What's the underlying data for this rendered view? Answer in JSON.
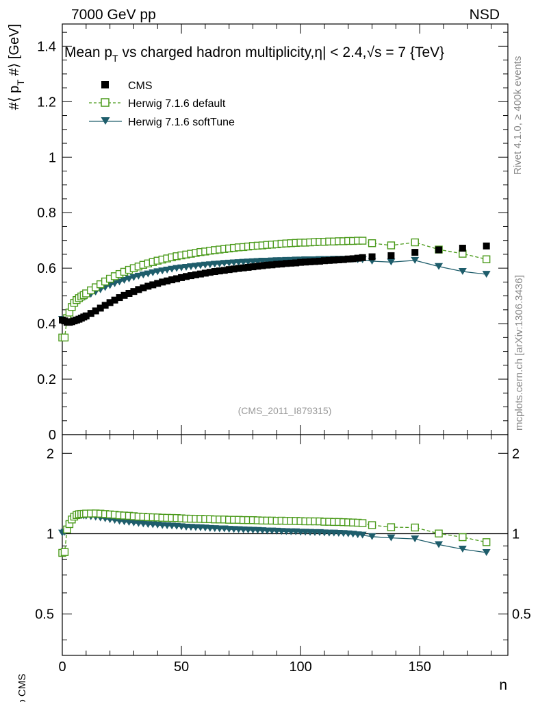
{
  "header": {
    "left": "7000 GeV pp",
    "right": "NSD"
  },
  "side_labels": {
    "rivet": "Rivet 4.1.0, ≥ 400k events",
    "mcplots": "mcplots.cern.ch [arXiv:1306.3436]"
  },
  "chart_data": {
    "type": "line",
    "title": "Mean p_T vs charged hadron multiplicity, |η| < 2.4, √s = 7 {TeV}",
    "title_parts": {
      "main": "Mean p",
      "sub": "T",
      "rest": " vs charged hadron multiplicity,",
      "eta": "η",
      "cut": "| < 2.4,",
      "sqrt": "√",
      "energy": "s = 7 {TeV}"
    },
    "ylabel": "#⟨ p_T #⟩ [GeV]",
    "ylabel_parts": {
      "pre": "#⟨ p",
      "sub": "T",
      "post": " #⟩ [GeV]"
    },
    "xlabel": "n",
    "ratio_ylabel": "Ratio to CMS",
    "watermark": "(CMS_2011_I879315)",
    "xlim": [
      0,
      187
    ],
    "ylim": [
      0,
      1.48
    ],
    "ratio_ylim": [
      0.35,
      2.35
    ],
    "ratio_log": true,
    "x_ticks": [
      "0",
      "50",
      "100",
      "150"
    ],
    "y_ticks": [
      "0",
      "0.2",
      "0.4",
      "0.6",
      "0.8",
      "1",
      "1.2",
      "1.4"
    ],
    "ratio_ticks": [
      "0.5",
      "1",
      "2"
    ],
    "legend": [
      "CMS",
      "Herwig 7.1.6 default",
      "Herwig 7.1.6 softTune"
    ],
    "x": [
      0,
      1,
      2,
      3,
      4,
      5,
      6,
      7,
      8,
      9,
      10,
      12,
      14,
      16,
      18,
      20,
      22,
      24,
      26,
      28,
      30,
      32,
      34,
      36,
      38,
      40,
      42,
      44,
      46,
      48,
      50,
      52,
      54,
      56,
      58,
      60,
      62,
      64,
      66,
      68,
      70,
      72,
      74,
      76,
      78,
      80,
      82,
      84,
      86,
      88,
      90,
      92,
      94,
      96,
      98,
      100,
      102,
      104,
      106,
      108,
      110,
      112,
      114,
      116,
      118,
      120,
      122,
      124,
      126,
      130,
      138,
      148,
      158,
      168,
      178
    ],
    "series": [
      {
        "name": "CMS",
        "color": "#000000",
        "marker": "filled-square",
        "values": [
          0.413,
          0.41,
          0.405,
          0.405,
          0.407,
          0.41,
          0.413,
          0.416,
          0.42,
          0.424,
          0.428,
          0.437,
          0.446,
          0.456,
          0.466,
          0.476,
          0.485,
          0.494,
          0.502,
          0.509,
          0.516,
          0.523,
          0.529,
          0.535,
          0.54,
          0.545,
          0.55,
          0.554,
          0.558,
          0.562,
          0.566,
          0.57,
          0.573,
          0.576,
          0.579,
          0.582,
          0.585,
          0.588,
          0.59,
          0.592,
          0.595,
          0.597,
          0.599,
          0.601,
          0.603,
          0.605,
          0.607,
          0.609,
          0.611,
          0.612,
          0.614,
          0.615,
          0.617,
          0.618,
          0.619,
          0.621,
          0.622,
          0.623,
          0.624,
          0.625,
          0.627,
          0.628,
          0.629,
          0.63,
          0.631,
          0.633,
          0.634,
          0.636,
          0.638,
          0.641,
          0.645,
          0.657,
          0.666,
          0.672,
          0.68
        ]
      },
      {
        "name": "Herwig 7.1.6 default",
        "color": "#4a9a1a",
        "marker": "open-square",
        "dash": true,
        "values": [
          0.35,
          0.35,
          0.42,
          0.44,
          0.46,
          0.475,
          0.485,
          0.492,
          0.498,
          0.503,
          0.509,
          0.52,
          0.531,
          0.542,
          0.552,
          0.562,
          0.571,
          0.579,
          0.587,
          0.594,
          0.6,
          0.606,
          0.612,
          0.617,
          0.622,
          0.627,
          0.631,
          0.635,
          0.639,
          0.643,
          0.646,
          0.649,
          0.652,
          0.655,
          0.658,
          0.66,
          0.663,
          0.665,
          0.667,
          0.669,
          0.671,
          0.673,
          0.675,
          0.676,
          0.678,
          0.68,
          0.681,
          0.682,
          0.684,
          0.685,
          0.686,
          0.688,
          0.689,
          0.69,
          0.691,
          0.692,
          0.692,
          0.693,
          0.694,
          0.695,
          0.695,
          0.696,
          0.696,
          0.697,
          0.697,
          0.698,
          0.698,
          0.699,
          0.699,
          0.69,
          0.682,
          0.693,
          0.667,
          0.652,
          0.632
        ]
      },
      {
        "name": "Herwig 7.1.6 softTune",
        "color": "#1e5d6b",
        "marker": "filled-triangle-down",
        "values": [
          0.415,
          0.415,
          0.42,
          0.438,
          0.455,
          0.468,
          0.478,
          0.485,
          0.49,
          0.494,
          0.498,
          0.506,
          0.514,
          0.522,
          0.53,
          0.537,
          0.544,
          0.55,
          0.556,
          0.561,
          0.566,
          0.571,
          0.575,
          0.579,
          0.583,
          0.587,
          0.59,
          0.593,
          0.596,
          0.599,
          0.601,
          0.603,
          0.605,
          0.607,
          0.609,
          0.611,
          0.612,
          0.614,
          0.615,
          0.617,
          0.618,
          0.619,
          0.62,
          0.621,
          0.622,
          0.623,
          0.624,
          0.625,
          0.625,
          0.626,
          0.627,
          0.627,
          0.628,
          0.628,
          0.629,
          0.629,
          0.63,
          0.63,
          0.63,
          0.631,
          0.631,
          0.631,
          0.632,
          0.632,
          0.632,
          0.632,
          0.631,
          0.63,
          0.63,
          0.625,
          0.622,
          0.628,
          0.606,
          0.588,
          0.578
        ]
      }
    ]
  }
}
